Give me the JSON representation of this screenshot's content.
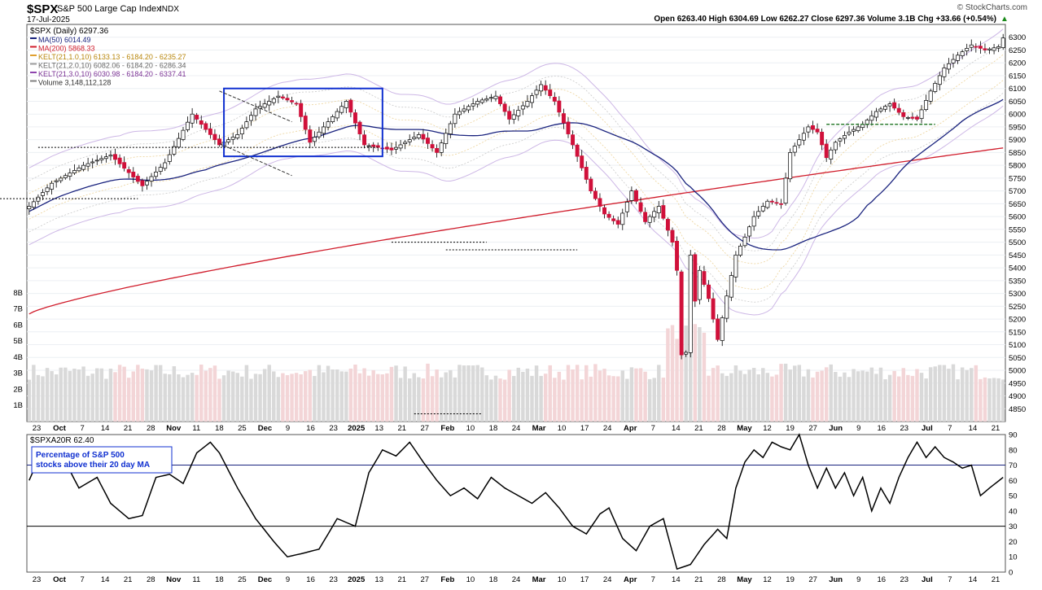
{
  "header": {
    "symbol": "$SPX",
    "name": "S&P 500 Large Cap Index",
    "exchange": "INDX",
    "date": "17-Jul-2025",
    "watermark": "© StockCharts.com",
    "ohlc_text": "Open 6263.40  High 6304.69  Low 6262.27  Close 6297.36  Volume 3.1B  Chg +33.66 (+0.54%)",
    "chg_arrow": "▲"
  },
  "chart_data": [
    {
      "type": "candlestick",
      "title": "$SPX (Daily) 6297.36",
      "legend": [
        {
          "label": "MA(50) 6014.49",
          "color": "#1a237e"
        },
        {
          "label": "MA(200) 5868.33",
          "color": "#d01c2b"
        },
        {
          "label": "KELT(21,1.0,10) 6133.13 - 6184.20 - 6235.27",
          "color": "#e0a030"
        },
        {
          "label": "KELT(21,2.0,10) 6082.06 - 6184.20 - 6286.34",
          "color": "#9e9e9e"
        },
        {
          "label": "KELT(21,3.0,10) 6030.98 - 6184.20 - 6337.41",
          "color": "#8e44ad"
        },
        {
          "label": "Volume 3,148,112,128",
          "color": "#808080"
        }
      ],
      "ylim": [
        4800,
        6350
      ],
      "y_ticks": [
        4850,
        4900,
        4950,
        5000,
        5050,
        5100,
        5150,
        5200,
        5250,
        5300,
        5350,
        5400,
        5450,
        5500,
        5550,
        5600,
        5650,
        5700,
        5750,
        5800,
        5850,
        5900,
        5950,
        6000,
        6050,
        6100,
        6150,
        6200,
        6250,
        6300
      ],
      "volume_ticks": [
        "1B",
        "2B",
        "3B",
        "4B",
        "5B",
        "6B",
        "7B",
        "8B"
      ],
      "x_labels": [
        "23",
        "Oct",
        "7",
        "14",
        "21",
        "28",
        "Nov",
        "11",
        "18",
        "25",
        "Dec",
        "9",
        "16",
        "23",
        "2025",
        "13",
        "21",
        "27",
        "Feb",
        "10",
        "18",
        "24",
        "Mar",
        "10",
        "17",
        "24",
        "Apr",
        "7",
        "14",
        "21",
        "28",
        "May",
        "12",
        "19",
        "27",
        "Jun",
        "9",
        "16",
        "23",
        "Jul",
        "7",
        "14",
        "21"
      ],
      "anchors": [
        {
          "i": 0,
          "c": 5640
        },
        {
          "i": 5,
          "c": 5730
        },
        {
          "i": 12,
          "c": 5800
        },
        {
          "i": 18,
          "c": 5840
        },
        {
          "i": 25,
          "c": 5720
        },
        {
          "i": 30,
          "c": 5810
        },
        {
          "i": 36,
          "c": 6000
        },
        {
          "i": 42,
          "c": 5880
        },
        {
          "i": 46,
          "c": 5920
        },
        {
          "i": 50,
          "c": 6020
        },
        {
          "i": 55,
          "c": 6070
        },
        {
          "i": 59,
          "c": 6040
        },
        {
          "i": 62,
          "c": 5890
        },
        {
          "i": 66,
          "c": 5970
        },
        {
          "i": 70,
          "c": 6050
        },
        {
          "i": 74,
          "c": 5880
        },
        {
          "i": 80,
          "c": 5860
        },
        {
          "i": 86,
          "c": 5920
        },
        {
          "i": 90,
          "c": 5850
        },
        {
          "i": 94,
          "c": 6000
        },
        {
          "i": 99,
          "c": 6050
        },
        {
          "i": 103,
          "c": 6070
        },
        {
          "i": 106,
          "c": 5980
        },
        {
          "i": 110,
          "c": 6050
        },
        {
          "i": 113,
          "c": 6115
        },
        {
          "i": 116,
          "c": 6050
        },
        {
          "i": 120,
          "c": 5880
        },
        {
          "i": 124,
          "c": 5700
        },
        {
          "i": 127,
          "c": 5610
        },
        {
          "i": 130,
          "c": 5570
        },
        {
          "i": 133,
          "c": 5700
        },
        {
          "i": 136,
          "c": 5580
        },
        {
          "i": 139,
          "c": 5640
        },
        {
          "i": 142,
          "c": 5500
        },
        {
          "i": 143,
          "c": 5390
        },
        {
          "i": 144,
          "c": 5060
        },
        {
          "i": 145,
          "c": 5070
        },
        {
          "i": 146,
          "c": 5450
        },
        {
          "i": 147,
          "c": 5270
        },
        {
          "i": 148,
          "c": 5390
        },
        {
          "i": 150,
          "c": 5280
        },
        {
          "i": 152,
          "c": 5120
        },
        {
          "i": 154,
          "c": 5290
        },
        {
          "i": 156,
          "c": 5450
        },
        {
          "i": 158,
          "c": 5520
        },
        {
          "i": 160,
          "c": 5600
        },
        {
          "i": 163,
          "c": 5660
        },
        {
          "i": 166,
          "c": 5650
        },
        {
          "i": 168,
          "c": 5850
        },
        {
          "i": 170,
          "c": 5900
        },
        {
          "i": 172,
          "c": 5950
        },
        {
          "i": 174,
          "c": 5930
        },
        {
          "i": 176,
          "c": 5830
        },
        {
          "i": 178,
          "c": 5890
        },
        {
          "i": 181,
          "c": 5930
        },
        {
          "i": 184,
          "c": 5960
        },
        {
          "i": 187,
          "c": 6010
        },
        {
          "i": 190,
          "c": 6040
        },
        {
          "i": 193,
          "c": 5990
        },
        {
          "i": 196,
          "c": 5980
        },
        {
          "i": 199,
          "c": 6090
        },
        {
          "i": 202,
          "c": 6180
        },
        {
          "i": 205,
          "c": 6230
        },
        {
          "i": 208,
          "c": 6270
        },
        {
          "i": 211,
          "c": 6250
        },
        {
          "i": 214,
          "c": 6263
        },
        {
          "i": 215,
          "c": 6297
        }
      ]
    },
    {
      "type": "line",
      "title": "$SPXA20R 62.40",
      "annotation": [
        "Percentage of S&P 500",
        "stocks above their 20 day MA"
      ],
      "ylim": [
        0,
        90
      ],
      "y_ticks": [
        0,
        10,
        20,
        30,
        40,
        50,
        60,
        70,
        80,
        90
      ],
      "reference_lines": [
        70,
        30
      ],
      "anchors": [
        {
          "i": 0,
          "v": 60
        },
        {
          "i": 3,
          "v": 80
        },
        {
          "i": 8,
          "v": 72
        },
        {
          "i": 11,
          "v": 55
        },
        {
          "i": 15,
          "v": 62
        },
        {
          "i": 18,
          "v": 45
        },
        {
          "i": 22,
          "v": 35
        },
        {
          "i": 25,
          "v": 37
        },
        {
          "i": 28,
          "v": 62
        },
        {
          "i": 31,
          "v": 64
        },
        {
          "i": 34,
          "v": 58
        },
        {
          "i": 37,
          "v": 78
        },
        {
          "i": 40,
          "v": 85
        },
        {
          "i": 42,
          "v": 78
        },
        {
          "i": 46,
          "v": 55
        },
        {
          "i": 50,
          "v": 35
        },
        {
          "i": 54,
          "v": 20
        },
        {
          "i": 57,
          "v": 10
        },
        {
          "i": 60,
          "v": 12
        },
        {
          "i": 64,
          "v": 15
        },
        {
          "i": 68,
          "v": 35
        },
        {
          "i": 72,
          "v": 30
        },
        {
          "i": 75,
          "v": 65
        },
        {
          "i": 78,
          "v": 80
        },
        {
          "i": 81,
          "v": 76
        },
        {
          "i": 84,
          "v": 85
        },
        {
          "i": 87,
          "v": 72
        },
        {
          "i": 90,
          "v": 60
        },
        {
          "i": 93,
          "v": 50
        },
        {
          "i": 96,
          "v": 55
        },
        {
          "i": 99,
          "v": 48
        },
        {
          "i": 102,
          "v": 62
        },
        {
          "i": 105,
          "v": 55
        },
        {
          "i": 108,
          "v": 50
        },
        {
          "i": 111,
          "v": 45
        },
        {
          "i": 114,
          "v": 52
        },
        {
          "i": 117,
          "v": 42
        },
        {
          "i": 120,
          "v": 30
        },
        {
          "i": 123,
          "v": 25
        },
        {
          "i": 126,
          "v": 38
        },
        {
          "i": 128,
          "v": 42
        },
        {
          "i": 131,
          "v": 22
        },
        {
          "i": 134,
          "v": 14
        },
        {
          "i": 137,
          "v": 30
        },
        {
          "i": 140,
          "v": 35
        },
        {
          "i": 143,
          "v": 2
        },
        {
          "i": 146,
          "v": 5
        },
        {
          "i": 149,
          "v": 18
        },
        {
          "i": 152,
          "v": 28
        },
        {
          "i": 154,
          "v": 22
        },
        {
          "i": 156,
          "v": 55
        },
        {
          "i": 158,
          "v": 72
        },
        {
          "i": 160,
          "v": 80
        },
        {
          "i": 162,
          "v": 75
        },
        {
          "i": 164,
          "v": 85
        },
        {
          "i": 166,
          "v": 82
        },
        {
          "i": 168,
          "v": 80
        },
        {
          "i": 170,
          "v": 90
        },
        {
          "i": 172,
          "v": 70
        },
        {
          "i": 174,
          "v": 55
        },
        {
          "i": 176,
          "v": 68
        },
        {
          "i": 178,
          "v": 55
        },
        {
          "i": 180,
          "v": 65
        },
        {
          "i": 182,
          "v": 50
        },
        {
          "i": 184,
          "v": 62
        },
        {
          "i": 186,
          "v": 40
        },
        {
          "i": 188,
          "v": 55
        },
        {
          "i": 190,
          "v": 45
        },
        {
          "i": 192,
          "v": 62
        },
        {
          "i": 194,
          "v": 75
        },
        {
          "i": 196,
          "v": 85
        },
        {
          "i": 198,
          "v": 75
        },
        {
          "i": 200,
          "v": 82
        },
        {
          "i": 202,
          "v": 75
        },
        {
          "i": 204,
          "v": 72
        },
        {
          "i": 206,
          "v": 68
        },
        {
          "i": 208,
          "v": 70
        },
        {
          "i": 210,
          "v": 50
        },
        {
          "i": 212,
          "v": 55
        },
        {
          "i": 215,
          "v": 62
        }
      ]
    }
  ]
}
